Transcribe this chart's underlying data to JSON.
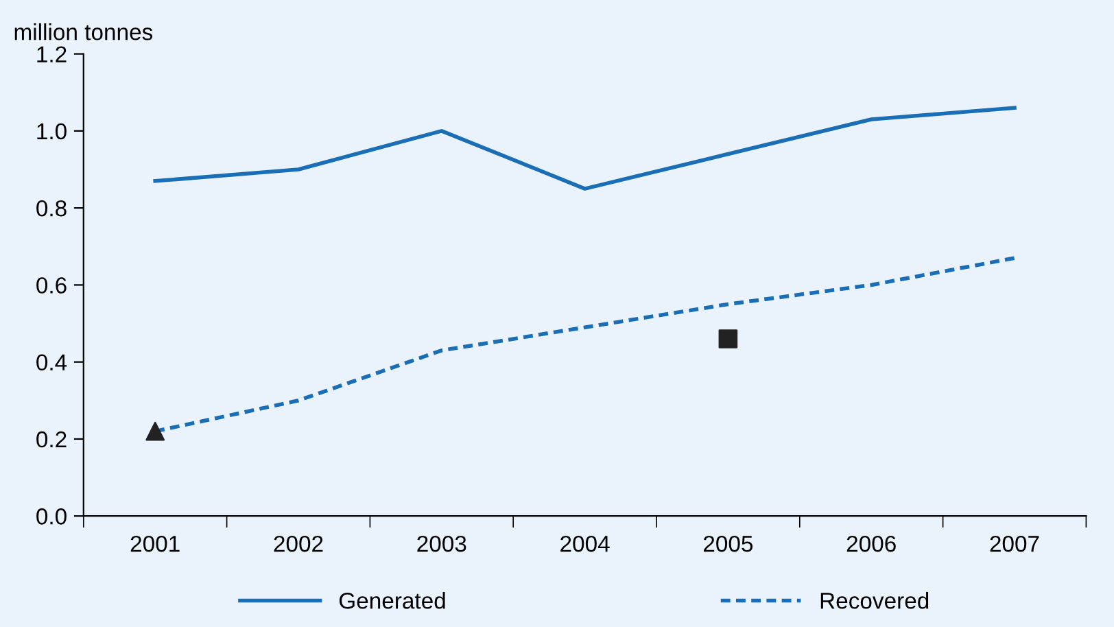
{
  "chart_data": {
    "type": "line",
    "ylabel": "million tonnes",
    "categories": [
      "2001",
      "2002",
      "2003",
      "2004",
      "2005",
      "2006",
      "2007"
    ],
    "series": [
      {
        "name": "Generated",
        "color": "#1a6eb5",
        "line_style": "solid",
        "values": [
          0.87,
          0.9,
          1.0,
          0.85,
          0.94,
          1.03,
          1.06
        ]
      },
      {
        "name": "Recovered",
        "color": "#1a6eb5",
        "line_style": "dotted",
        "values": [
          0.22,
          0.3,
          0.43,
          0.49,
          0.55,
          0.6,
          0.67
        ]
      },
      {
        "type": "scatter",
        "color": "#222222",
        "marker": "triangle",
        "values": [
          0.22,
          null,
          null,
          null,
          null,
          null,
          null
        ]
      },
      {
        "type": "scatter",
        "color": "#222222",
        "marker": "square",
        "values": [
          null,
          null,
          null,
          null,
          0.46,
          null,
          null
        ]
      }
    ],
    "ylim": [
      0,
      1.2
    ],
    "yticks": [
      {
        "value": 0,
        "label": "0.0"
      },
      {
        "value": 0.2,
        "label": "0.2"
      },
      {
        "value": 0.4,
        "label": "0.4"
      },
      {
        "value": 0.6,
        "label": "0.6"
      },
      {
        "value": 0.8,
        "label": "0.8"
      },
      {
        "value": 1.0,
        "label": "1.0"
      },
      {
        "value": 1.2,
        "label": "1.2"
      }
    ],
    "grid": false,
    "legend": "bottom"
  }
}
